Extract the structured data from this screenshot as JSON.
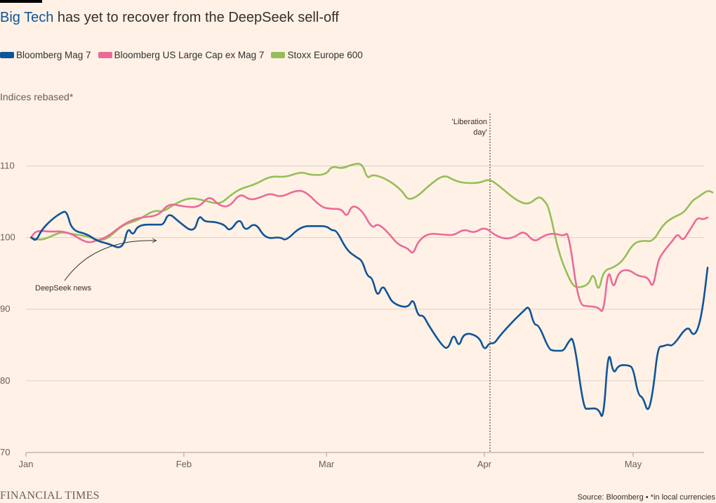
{
  "title": {
    "highlight": "Big Tech",
    "rest": " has yet to recover from the DeepSeek sell-off"
  },
  "y_unit_label": "Indices rebased*",
  "footer": {
    "brand": "FINANCIAL TIMES",
    "source": "Source: Bloomberg • *in local currencies"
  },
  "colors": {
    "background": "#fff1e5",
    "mag7": "#0f5499",
    "exmag7": "#eb6a9a",
    "stoxx": "#96be58",
    "grid": "#ddd0c4"
  },
  "chart_data": {
    "type": "line",
    "title": "Big Tech has yet to recover from the DeepSeek sell-off",
    "ylabel": "Indices rebased*",
    "xlabel": "",
    "x_domain": [
      "2025-01-01",
      "2025-05-14"
    ],
    "x_ticks": [
      {
        "date": "2025-01-01",
        "label": "Jan"
      },
      {
        "date": "2025-02-01",
        "label": "Feb"
      },
      {
        "date": "2025-03-01",
        "label": "Mar"
      },
      {
        "date": "2025-04-01",
        "label": "Apr"
      },
      {
        "date": "2025-05-01",
        "label": "May"
      }
    ],
    "ylim": [
      70,
      117
    ],
    "y_ticks": [
      70,
      80,
      90,
      100,
      110
    ],
    "grid": true,
    "legend": "top",
    "series": [
      {
        "name": "Bloomberg Mag 7",
        "color": "#0f5499",
        "points": [
          [
            "2025-01-02",
            100
          ],
          [
            "2025-01-03",
            99.5
          ],
          [
            "2025-01-04",
            101
          ],
          [
            "2025-01-06",
            102.5
          ],
          [
            "2025-01-08",
            103.5
          ],
          [
            "2025-01-09",
            103.7
          ],
          [
            "2025-01-10",
            101
          ],
          [
            "2025-01-13",
            100.5
          ],
          [
            "2025-01-15",
            99.5
          ],
          [
            "2025-01-17",
            99.2
          ],
          [
            "2025-01-20",
            98.3
          ],
          [
            "2025-01-21",
            101.5
          ],
          [
            "2025-01-22",
            100.2
          ],
          [
            "2025-01-23",
            101.8
          ],
          [
            "2025-01-27",
            101.8
          ],
          [
            "2025-01-28",
            101.8
          ],
          [
            "2025-01-29",
            103.5
          ],
          [
            "2025-01-31",
            102.2
          ],
          [
            "2025-02-03",
            100.6
          ],
          [
            "2025-02-04",
            103.2
          ],
          [
            "2025-02-05",
            102.2
          ],
          [
            "2025-02-07",
            102.2
          ],
          [
            "2025-02-09",
            101.8
          ],
          [
            "2025-02-10",
            100.8
          ],
          [
            "2025-02-12",
            102.8
          ],
          [
            "2025-02-13",
            100.8
          ],
          [
            "2025-02-15",
            102.2
          ],
          [
            "2025-02-17",
            99.8
          ],
          [
            "2025-02-20",
            100.1
          ],
          [
            "2025-02-21",
            99.5
          ],
          [
            "2025-02-24",
            101.6
          ],
          [
            "2025-02-27",
            101.6
          ],
          [
            "2025-03-01",
            101.6
          ],
          [
            "2025-03-02",
            101
          ],
          [
            "2025-03-03",
            101
          ],
          [
            "2025-03-05",
            98.2
          ],
          [
            "2025-03-07",
            97.2
          ],
          [
            "2025-03-08",
            96.8
          ],
          [
            "2025-03-09",
            94.6
          ],
          [
            "2025-03-10",
            94.4
          ],
          [
            "2025-03-11",
            91.6
          ],
          [
            "2025-03-12",
            93.4
          ],
          [
            "2025-03-13",
            92.2
          ],
          [
            "2025-03-14",
            90.8
          ],
          [
            "2025-03-17",
            90.1
          ],
          [
            "2025-03-18",
            91.6
          ],
          [
            "2025-03-19",
            89
          ],
          [
            "2025-03-20",
            89.2
          ],
          [
            "2025-03-21",
            87.8
          ],
          [
            "2025-03-24",
            84.6
          ],
          [
            "2025-03-25",
            84.6
          ],
          [
            "2025-03-26",
            86.7
          ],
          [
            "2025-03-27",
            84.6
          ],
          [
            "2025-03-28",
            86.8
          ],
          [
            "2025-03-31",
            86.2
          ],
          [
            "2025-04-01",
            84.2
          ],
          [
            "2025-04-02",
            85.3
          ],
          [
            "2025-04-03",
            85.2
          ],
          [
            "2025-04-04",
            86.2
          ],
          [
            "2025-04-07",
            88.5
          ],
          [
            "2025-04-09",
            89.8
          ],
          [
            "2025-04-10",
            90.5
          ],
          [
            "2025-04-11",
            87.8
          ],
          [
            "2025-04-12",
            87.8
          ],
          [
            "2025-04-14",
            84.4
          ],
          [
            "2025-04-15",
            84.2
          ],
          [
            "2025-04-16",
            84.2
          ],
          [
            "2025-04-17",
            84.2
          ],
          [
            "2025-04-18",
            85.5
          ],
          [
            "2025-04-19",
            86.2
          ],
          [
            "2025-04-21",
            76.1
          ],
          [
            "2025-04-22",
            76.1
          ],
          [
            "2025-04-24",
            76.2
          ],
          [
            "2025-04-25",
            74.3
          ],
          [
            "2025-04-26",
            84.8
          ],
          [
            "2025-04-27",
            80.8
          ],
          [
            "2025-04-28",
            82.2
          ],
          [
            "2025-04-30",
            82.2
          ],
          [
            "2025-05-01",
            81.8
          ],
          [
            "2025-05-02",
            78
          ],
          [
            "2025-05-03",
            77.7
          ],
          [
            "2025-05-04",
            75.4
          ],
          [
            "2025-05-05",
            78.5
          ],
          [
            "2025-05-06",
            84.8
          ],
          [
            "2025-05-07",
            84.8
          ],
          [
            "2025-05-08",
            85.1
          ],
          [
            "2025-05-09",
            84.8
          ],
          [
            "2025-05-12",
            87.8
          ],
          [
            "2025-05-13",
            86.3
          ],
          [
            "2025-05-14",
            87
          ],
          [
            "2025-05-15",
            90
          ],
          [
            "2025-05-16",
            95.8
          ]
        ]
      },
      {
        "name": "Bloomberg US Large Cap ex Mag 7",
        "color": "#eb6a9a",
        "points": [
          [
            "2025-01-02",
            100
          ],
          [
            "2025-01-03",
            101
          ],
          [
            "2025-01-06",
            100.8
          ],
          [
            "2025-01-08",
            100.9
          ],
          [
            "2025-01-10",
            100.5
          ],
          [
            "2025-01-13",
            99.2
          ],
          [
            "2025-01-15",
            99.6
          ],
          [
            "2025-01-17",
            100.1
          ],
          [
            "2025-01-20",
            101.8
          ],
          [
            "2025-01-23",
            102.8
          ],
          [
            "2025-01-27",
            103
          ],
          [
            "2025-01-29",
            104.8
          ],
          [
            "2025-02-01",
            104.3
          ],
          [
            "2025-02-04",
            104.2
          ],
          [
            "2025-02-06",
            105.9
          ],
          [
            "2025-02-08",
            104.4
          ],
          [
            "2025-02-10",
            104.3
          ],
          [
            "2025-02-12",
            106.2
          ],
          [
            "2025-02-14",
            105.2
          ],
          [
            "2025-02-16",
            105.6
          ],
          [
            "2025-02-18",
            106.2
          ],
          [
            "2025-02-20",
            105.6
          ],
          [
            "2025-02-23",
            106.6
          ],
          [
            "2025-02-25",
            106.4
          ],
          [
            "2025-02-28",
            104.2
          ],
          [
            "2025-03-02",
            104
          ],
          [
            "2025-03-04",
            104
          ],
          [
            "2025-03-05",
            102.8
          ],
          [
            "2025-03-06",
            104.6
          ],
          [
            "2025-03-08",
            103.8
          ],
          [
            "2025-03-10",
            101.2
          ],
          [
            "2025-03-11",
            102
          ],
          [
            "2025-03-13",
            100.8
          ],
          [
            "2025-03-15",
            99
          ],
          [
            "2025-03-17",
            98.5
          ],
          [
            "2025-03-18",
            97.6
          ],
          [
            "2025-03-19",
            99.5
          ],
          [
            "2025-03-21",
            100.6
          ],
          [
            "2025-03-24",
            100.4
          ],
          [
            "2025-03-26",
            100.3
          ],
          [
            "2025-03-28",
            101.2
          ],
          [
            "2025-03-30",
            100.6
          ],
          [
            "2025-04-01",
            101.5
          ],
          [
            "2025-04-03",
            100.4
          ],
          [
            "2025-04-05",
            99.8
          ],
          [
            "2025-04-07",
            100
          ],
          [
            "2025-04-09",
            101
          ],
          [
            "2025-04-11",
            99.3
          ],
          [
            "2025-04-13",
            100.3
          ],
          [
            "2025-04-15",
            100.6
          ],
          [
            "2025-04-17",
            100.2
          ],
          [
            "2025-04-18",
            100.8
          ],
          [
            "2025-04-20",
            90.6
          ],
          [
            "2025-04-22",
            90.4
          ],
          [
            "2025-04-24",
            90.3
          ],
          [
            "2025-04-25",
            89.3
          ],
          [
            "2025-04-26",
            96
          ],
          [
            "2025-04-27",
            92.6
          ],
          [
            "2025-04-28",
            95.2
          ],
          [
            "2025-04-30",
            95.6
          ],
          [
            "2025-05-02",
            94.6
          ],
          [
            "2025-05-04",
            94.5
          ],
          [
            "2025-05-05",
            92.8
          ],
          [
            "2025-05-06",
            96.8
          ],
          [
            "2025-05-07",
            97.9
          ],
          [
            "2025-05-08",
            98.8
          ],
          [
            "2025-05-09",
            99.6
          ],
          [
            "2025-05-10",
            100.6
          ],
          [
            "2025-05-11",
            99.5
          ],
          [
            "2025-05-12",
            100.6
          ],
          [
            "2025-05-13",
            101.7
          ],
          [
            "2025-05-14",
            102.8
          ],
          [
            "2025-05-15",
            102.5
          ],
          [
            "2025-05-16",
            102.8
          ]
        ]
      },
      {
        "name": "Stoxx Europe 600",
        "color": "#96be58",
        "points": [
          [
            "2025-01-02",
            100
          ],
          [
            "2025-01-04",
            99.6
          ],
          [
            "2025-01-06",
            100.2
          ],
          [
            "2025-01-08",
            100.8
          ],
          [
            "2025-01-10",
            100.5
          ],
          [
            "2025-01-13",
            100.2
          ],
          [
            "2025-01-15",
            99.6
          ],
          [
            "2025-01-17",
            99.8
          ],
          [
            "2025-01-20",
            101.8
          ],
          [
            "2025-01-23",
            102.4
          ],
          [
            "2025-01-26",
            103.8
          ],
          [
            "2025-01-28",
            103.6
          ],
          [
            "2025-01-30",
            104.6
          ],
          [
            "2025-02-02",
            105.6
          ],
          [
            "2025-02-05",
            105.2
          ],
          [
            "2025-02-08",
            104.6
          ],
          [
            "2025-02-10",
            105.8
          ],
          [
            "2025-02-12",
            106.8
          ],
          [
            "2025-02-15",
            107.4
          ],
          [
            "2025-02-18",
            108.6
          ],
          [
            "2025-02-21",
            108.4
          ],
          [
            "2025-02-24",
            109.2
          ],
          [
            "2025-02-26",
            108.7
          ],
          [
            "2025-03-01",
            108.8
          ],
          [
            "2025-03-02",
            110
          ],
          [
            "2025-03-04",
            109.6
          ],
          [
            "2025-03-06",
            110.2
          ],
          [
            "2025-03-08",
            110.4
          ],
          [
            "2025-03-09",
            108.2
          ],
          [
            "2025-03-10",
            108.8
          ],
          [
            "2025-03-12",
            108.4
          ],
          [
            "2025-03-14",
            107.6
          ],
          [
            "2025-03-16",
            106.4
          ],
          [
            "2025-03-17",
            105.2
          ],
          [
            "2025-03-19",
            105.8
          ],
          [
            "2025-03-21",
            107.2
          ],
          [
            "2025-03-24",
            108.8
          ],
          [
            "2025-03-26",
            108
          ],
          [
            "2025-03-28",
            107.6
          ],
          [
            "2025-03-31",
            107.6
          ],
          [
            "2025-04-02",
            108.2
          ],
          [
            "2025-04-04",
            107.2
          ],
          [
            "2025-04-06",
            106
          ],
          [
            "2025-04-08",
            105
          ],
          [
            "2025-04-10",
            104.6
          ],
          [
            "2025-04-12",
            105.8
          ],
          [
            "2025-04-13",
            105.2
          ],
          [
            "2025-04-14",
            104.3
          ],
          [
            "2025-04-16",
            97.8
          ],
          [
            "2025-04-18",
            94.4
          ],
          [
            "2025-04-19",
            93.2
          ],
          [
            "2025-04-20",
            93
          ],
          [
            "2025-04-22",
            93.4
          ],
          [
            "2025-04-23",
            95.2
          ],
          [
            "2025-04-24",
            92.2
          ],
          [
            "2025-04-25",
            95.4
          ],
          [
            "2025-04-27",
            95.8
          ],
          [
            "2025-04-29",
            96.8
          ],
          [
            "2025-05-01",
            99.2
          ],
          [
            "2025-05-03",
            99.6
          ],
          [
            "2025-05-05",
            99.4
          ],
          [
            "2025-05-07",
            101.8
          ],
          [
            "2025-05-09",
            102.8
          ],
          [
            "2025-05-11",
            103.4
          ],
          [
            "2025-05-12",
            104.2
          ],
          [
            "2025-05-13",
            105.2
          ],
          [
            "2025-05-14",
            105.6
          ],
          [
            "2025-05-16",
            106.6
          ],
          [
            "2025-05-17",
            106.3
          ]
        ]
      }
    ],
    "annotations": [
      {
        "text_lines": [
          "'Liberation",
          "day'"
        ],
        "date": "2025-04-02",
        "style": "dotted vertical line"
      },
      {
        "text": "DeepSeek news",
        "date": "2025-01-27",
        "style": "curved arrow"
      }
    ]
  }
}
